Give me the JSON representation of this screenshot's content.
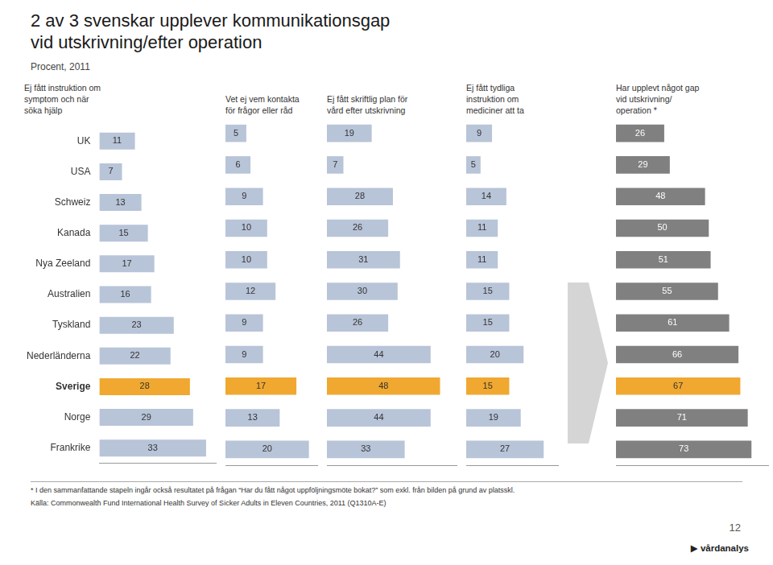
{
  "title": "2 av 3 svenskar upplever kommunikationsgap\nvid utskrivning/efter operation",
  "subtitle": "Procent, 2011",
  "annotations": [
    "* I den sammanfattande stapeln ingår också resultatet på frågan “Har du fått något uppföljningsmöte bokat?” som exkl. från bilden på grund av platsskl.",
    "Källa: Commonwealth Fund International Health Survey of Sicker Adults in Eleven Countries, 2011 (Q1310A-E)",
    "12",
    "▶ vårdanalys"
  ],
  "chart_data": [
    {
      "type": "bar",
      "orientation": "horizontal",
      "title": "Ej fått instruktion om\nsymptom och när\nsöka hjälp",
      "categories": [
        "UK",
        "USA",
        "Schweiz",
        "Kanada",
        "Nya Zeeland",
        "Australien",
        "Tyskland",
        "Nederländerna",
        "Sverige",
        "Norge",
        "Frankrike"
      ],
      "values": [
        11,
        7,
        13,
        15,
        17,
        16,
        23,
        22,
        28,
        29,
        33
      ],
      "colors": [
        "#b8c4d8",
        "#b8c4d8",
        "#b8c4d8",
        "#b8c4d8",
        "#b8c4d8",
        "#b8c4d8",
        "#b8c4d8",
        "#b8c4d8",
        "#f0a830",
        "#b8c4d8",
        "#b8c4d8"
      ],
      "xlim": [
        0,
        36
      ],
      "grid": false,
      "data_labels": true,
      "tick_labels": "y"
    },
    {
      "type": "bar",
      "orientation": "horizontal",
      "title": "Vet ej vem kontakta\nför frågor eller råd",
      "categories": [
        "UK",
        "USA",
        "Schweiz",
        "Kanada",
        "Nya Zeeland",
        "Australien",
        "Tyskland",
        "Nederländerna",
        "Sverige",
        "Norge",
        "Frankrike"
      ],
      "values": [
        5,
        6,
        9,
        10,
        10,
        12,
        9,
        9,
        17,
        13,
        20
      ],
      "colors": [
        "#b8c4d8",
        "#b8c4d8",
        "#b8c4d8",
        "#b8c4d8",
        "#b8c4d8",
        "#b8c4d8",
        "#b8c4d8",
        "#b8c4d8",
        "#f0a830",
        "#b8c4d8",
        "#b8c4d8"
      ],
      "xlim": [
        0,
        22
      ],
      "grid": false,
      "data_labels": true,
      "tick_labels": false
    },
    {
      "type": "bar",
      "orientation": "horizontal",
      "title": "Ej fått skriftlig plan för\nvård efter utskrivning",
      "categories": [
        "UK",
        "USA",
        "Schweiz",
        "Kanada",
        "Nya Zeeland",
        "Australien",
        "Tyskland",
        "Nederländerna",
        "Sverige",
        "Norge",
        "Frankrike"
      ],
      "values": [
        19,
        7,
        28,
        26,
        31,
        30,
        26,
        44,
        48,
        44,
        33
      ],
      "colors": [
        "#b8c4d8",
        "#b8c4d8",
        "#b8c4d8",
        "#b8c4d8",
        "#b8c4d8",
        "#b8c4d8",
        "#b8c4d8",
        "#b8c4d8",
        "#f0a830",
        "#b8c4d8",
        "#b8c4d8"
      ],
      "xlim": [
        0,
        55
      ],
      "grid": false,
      "data_labels": true,
      "tick_labels": false
    },
    {
      "type": "bar",
      "orientation": "horizontal",
      "title": "Ej fått tydliga\ninstruktion om\nmediciner att ta",
      "categories": [
        "UK",
        "USA",
        "Schweiz",
        "Kanada",
        "Nya Zeeland",
        "Australien",
        "Tyskland",
        "Nederländerna",
        "Sverige",
        "Norge",
        "Frankrike"
      ],
      "values": [
        9,
        5,
        14,
        11,
        11,
        15,
        15,
        20,
        15,
        19,
        27
      ],
      "colors": [
        "#b8c4d8",
        "#b8c4d8",
        "#b8c4d8",
        "#b8c4d8",
        "#b8c4d8",
        "#b8c4d8",
        "#b8c4d8",
        "#b8c4d8",
        "#f0a830",
        "#b8c4d8",
        "#b8c4d8"
      ],
      "xlim": [
        0,
        32
      ],
      "grid": false,
      "data_labels": true,
      "tick_labels": false
    },
    {
      "type": "bar",
      "orientation": "horizontal",
      "title": "Har upplevt något gap\nvid utskrivning/\noperation *",
      "categories": [
        "UK",
        "USA",
        "Schweiz",
        "Kanada",
        "Nya Zeeland",
        "Australien",
        "Tyskland",
        "Nederländerna",
        "Sverige",
        "Norge",
        "Frankrike"
      ],
      "values": [
        26,
        29,
        48,
        50,
        51,
        55,
        61,
        66,
        67,
        71,
        73
      ],
      "colors": [
        "#808080",
        "#808080",
        "#808080",
        "#808080",
        "#808080",
        "#808080",
        "#808080",
        "#808080",
        "#f0a830",
        "#808080",
        "#808080"
      ],
      "xlim": [
        0,
        82
      ],
      "grid": false,
      "data_labels": true,
      "tick_labels": false
    }
  ]
}
